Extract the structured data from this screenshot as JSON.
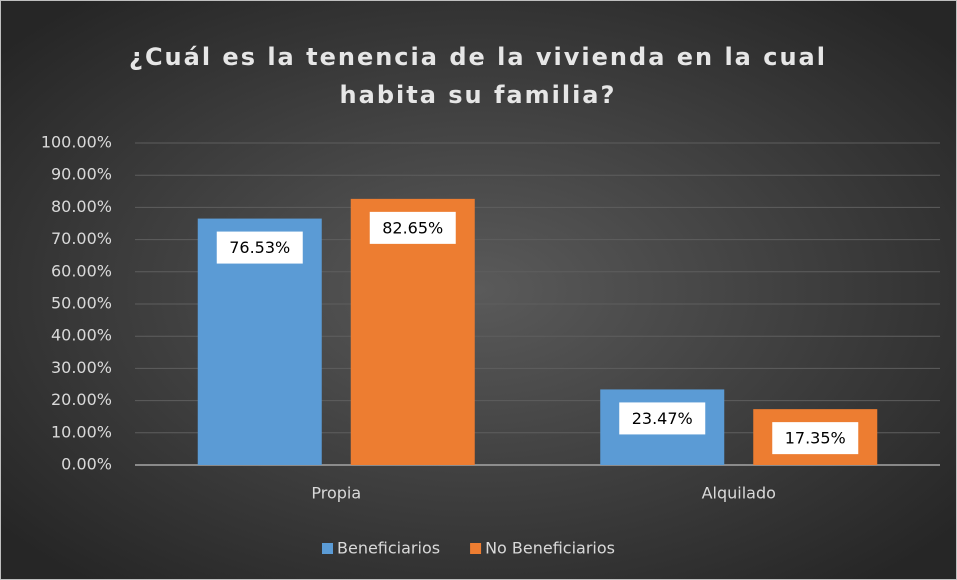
{
  "chart_data": {
    "type": "bar",
    "title": "¿Cuál es la tenencia de la vivienda en la cual habita su familia?",
    "categories": [
      "Propia",
      "Alquilado"
    ],
    "series": [
      {
        "name": "Beneficiarios",
        "color": "#5b9bd5",
        "values": [
          76.53,
          23.47
        ],
        "value_labels": [
          "76.53%",
          "23.47%"
        ]
      },
      {
        "name": "No Beneficiarios",
        "color": "#ed7d31",
        "values": [
          82.65,
          17.35
        ],
        "value_labels": [
          "82.65%",
          "17.35%"
        ]
      }
    ],
    "ylim": [
      0,
      100
    ],
    "yticks": [
      {
        "value": 0,
        "label": "0.00%"
      },
      {
        "value": 10,
        "label": "10.00%"
      },
      {
        "value": 20,
        "label": "20.00%"
      },
      {
        "value": 30,
        "label": "30.00%"
      },
      {
        "value": 40,
        "label": "40.00%"
      },
      {
        "value": 50,
        "label": "50.00%"
      },
      {
        "value": 60,
        "label": "60.00%"
      },
      {
        "value": 70,
        "label": "70.00%"
      },
      {
        "value": 80,
        "label": "80.00%"
      },
      {
        "value": 90,
        "label": "90.00%"
      },
      {
        "value": 100,
        "label": "100.00%"
      }
    ],
    "grid": true,
    "legend": "bottom"
  }
}
